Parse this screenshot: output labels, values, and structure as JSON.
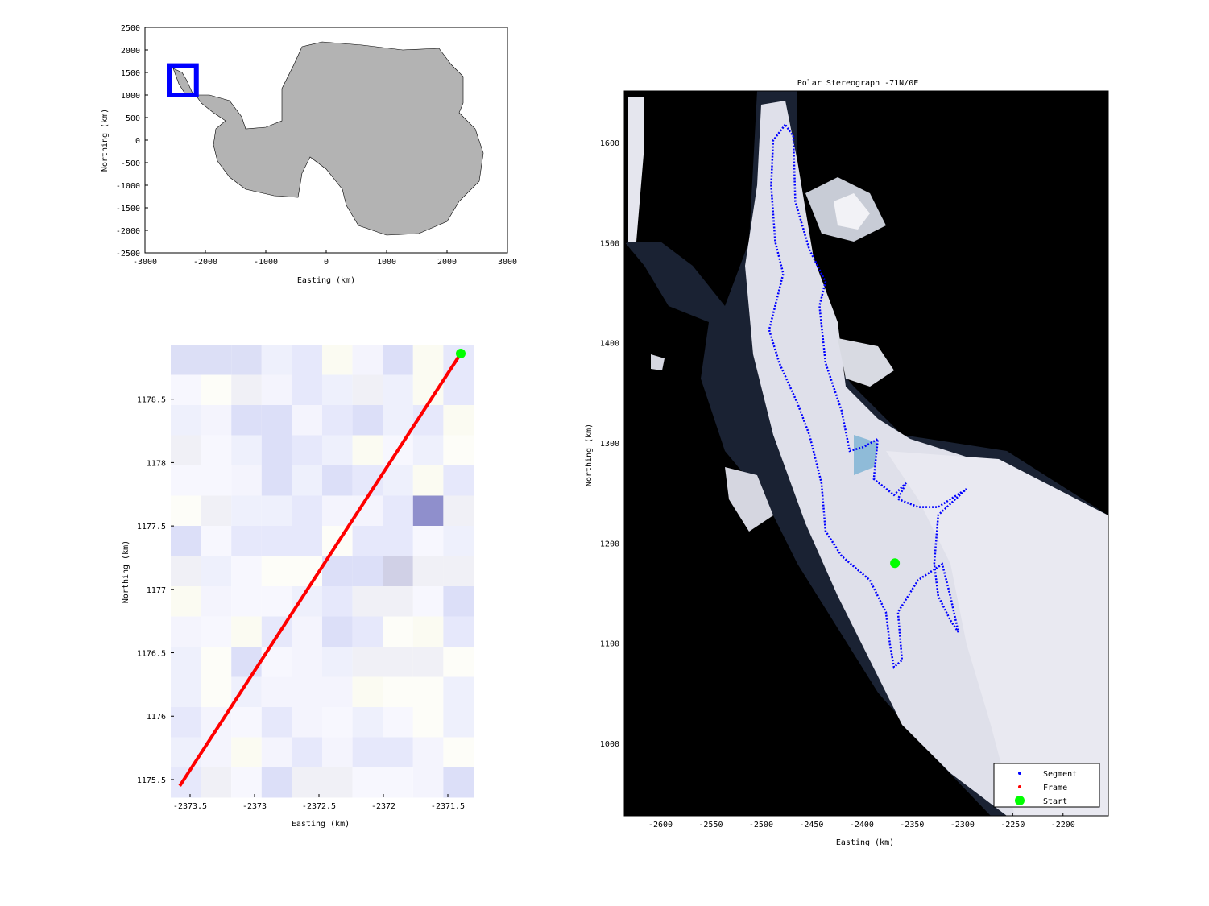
{
  "chart_data": [
    {
      "type": "map",
      "xlabel": "Easting (km)",
      "ylabel": "Northing (km)",
      "xlim": [
        -3000,
        3000
      ],
      "ylim": [
        -2500,
        2500
      ],
      "xticks": [
        "-3000",
        "-2000",
        "-1000",
        "0",
        "1000",
        "2000",
        "3000"
      ],
      "xtick_values": [
        -3000,
        -2000,
        -1000,
        0,
        1000,
        2000,
        3000
      ],
      "yticks": [
        "2500",
        "2000",
        "1500",
        "1000",
        "500",
        "0",
        "-500",
        "-1000",
        "-1500",
        "-2000",
        "-2500"
      ],
      "ytick_values": [
        2500,
        2000,
        1500,
        1000,
        500,
        0,
        -500,
        -1000,
        -1500,
        -2000,
        -2500
      ],
      "land_color": "#b3b3b3",
      "highlight_box": {
        "x": [
          -2600,
          -2150
        ],
        "y": [
          1000,
          1650
        ],
        "color": "#0000ff"
      }
    },
    {
      "type": "line",
      "xlabel": "Easting (km)",
      "ylabel": "Northing (km)",
      "xlim": [
        -2373.65,
        -2371.3
      ],
      "ylim": [
        1175.36,
        1178.93
      ],
      "xticks": [
        "-2373.5",
        "-2373",
        "-2372.5",
        "-2372",
        "-2371.5"
      ],
      "xtick_values": [
        -2373.5,
        -2373,
        -2372.5,
        -2372,
        -2371.5
      ],
      "yticks": [
        "1178.5",
        "1178",
        "1177.5",
        "1177",
        "1176.5",
        "1176",
        "1175.5"
      ],
      "ytick_values": [
        1178.5,
        1178,
        1177.5,
        1177,
        1176.5,
        1176,
        1175.5
      ],
      "frame_line": {
        "x": [
          -2373.58,
          -2371.4
        ],
        "y": [
          1175.45,
          1178.86
        ],
        "color": "#ff0000"
      },
      "start": {
        "x": -2371.4,
        "y": 1178.86,
        "color": "#00ff00"
      }
    },
    {
      "type": "scatter",
      "title": "Polar Stereograph -71N/0E",
      "xlabel": "Easting (km)",
      "ylabel": "Northing (km)",
      "xlim": [
        -2636,
        -2155
      ],
      "ylim": [
        927.6,
        1651.5
      ],
      "xticks": [
        "-2600",
        "-2550",
        "-2500",
        "-2450",
        "-2400",
        "-2350",
        "-2300",
        "-2250",
        "-2200"
      ],
      "xtick_values": [
        -2600,
        -2550,
        -2500,
        -2450,
        -2400,
        -2350,
        -2300,
        -2250,
        -2200
      ],
      "yticks": [
        "1600",
        "1500",
        "1400",
        "1300",
        "1200",
        "1100",
        "1000"
      ],
      "ytick_values": [
        1600,
        1500,
        1400,
        1300,
        1200,
        1100,
        1000
      ],
      "legend": {
        "placement": "bottom-right",
        "entries": [
          {
            "label": "Segment",
            "color": "#0000ff"
          },
          {
            "label": "Frame",
            "color": "#ff0000"
          },
          {
            "label": "Start",
            "color": "#00ff00"
          }
        ]
      },
      "segment_track": [
        [
          -2476,
          1618
        ],
        [
          -2488,
          1602
        ],
        [
          -2490,
          1557
        ],
        [
          -2486,
          1501
        ],
        [
          -2478,
          1469
        ],
        [
          -2492,
          1413
        ],
        [
          -2482,
          1380
        ],
        [
          -2464,
          1340
        ],
        [
          -2452,
          1308
        ],
        [
          -2440,
          1260
        ],
        [
          -2436,
          1212
        ],
        [
          -2420,
          1187
        ],
        [
          -2392,
          1163
        ],
        [
          -2376,
          1131
        ],
        [
          -2372,
          1099
        ],
        [
          -2368,
          1076
        ],
        [
          -2360,
          1083
        ],
        [
          -2364,
          1131
        ],
        [
          -2344,
          1163
        ],
        [
          -2320,
          1179
        ],
        [
          -2312,
          1147
        ],
        [
          -2304,
          1111
        ],
        [
          -2312,
          1123
        ],
        [
          -2324,
          1147
        ],
        [
          -2328,
          1179
        ],
        [
          -2324,
          1228
        ],
        [
          -2296,
          1254
        ],
        [
          -2324,
          1236
        ],
        [
          -2344,
          1236
        ],
        [
          -2364,
          1244
        ],
        [
          -2356,
          1260
        ],
        [
          -2368,
          1248
        ],
        [
          -2388,
          1264
        ],
        [
          -2384,
          1304
        ],
        [
          -2398,
          1296
        ],
        [
          -2412,
          1292
        ],
        [
          -2420,
          1332
        ],
        [
          -2436,
          1380
        ],
        [
          -2442,
          1437
        ],
        [
          -2436,
          1461
        ],
        [
          -2452,
          1493
        ],
        [
          -2466,
          1541
        ],
        [
          -2468,
          1606
        ],
        [
          -2476,
          1618
        ]
      ],
      "start": {
        "x": -2367,
        "y": 1180
      }
    }
  ]
}
